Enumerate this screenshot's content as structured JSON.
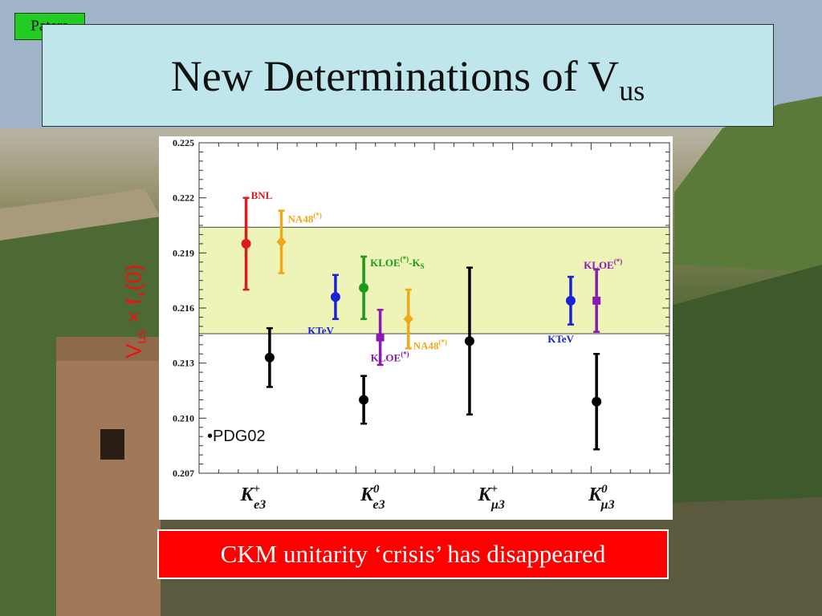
{
  "slide": {
    "author": "Patera",
    "title": "New Determinations of V",
    "title_subscript": "us",
    "footer": "CKM unitarity ‘crisis’ has disappeared"
  },
  "colors": {
    "red": "#e01a1a",
    "orange": "#f0a818",
    "green": "#1a9a1a",
    "blue": "#1a22d8",
    "purple": "#8a1ab0",
    "black": "#000000",
    "band": "#eef3b8",
    "footer_bg": "#ff0000",
    "title_bg": "#bfe6ea",
    "author_bg": "#22cc22"
  },
  "chart_data": {
    "type": "scatter",
    "ylabel_main": "V",
    "ylabel_sub": "us",
    "ylabel_mid": " × f",
    "ylabel_sub2": "+",
    "ylabel_end": "(0)",
    "ylim": [
      0.207,
      0.225
    ],
    "yticks": [
      "0.207",
      "0.210",
      "0.213",
      "0.216",
      "0.219",
      "0.222",
      "0.225"
    ],
    "xlim": [
      0,
      10
    ],
    "unitarity_band": [
      0.2146,
      0.2204
    ],
    "categories": [
      {
        "main": "K",
        "sup": "+",
        "sub": "e3",
        "x": 1.05
      },
      {
        "main": "K",
        "sup": "0",
        "sub": "e3",
        "x": 3.6
      },
      {
        "main": "K",
        "sup": "+",
        "sub": "μ3",
        "x": 6.1
      },
      {
        "main": "K",
        "sup": "0",
        "sub": "μ3",
        "x": 8.45
      }
    ],
    "points": [
      {
        "label": "BNL",
        "sup": "",
        "sub2": "",
        "x": 1.0,
        "y": 0.2195,
        "err": 0.0025,
        "color": "red",
        "marker": "circle"
      },
      {
        "label": "NA48",
        "sup": "(*)",
        "sub2": "",
        "x": 1.75,
        "y": 0.2196,
        "err": 0.0017,
        "color": "orange",
        "marker": "diamond"
      },
      {
        "label": "PDG02",
        "sup": "",
        "sub2": "",
        "x": 1.5,
        "y": 0.2133,
        "err": 0.0016,
        "color": "black",
        "marker": "circle"
      },
      {
        "label": "KTeV",
        "sup": "",
        "sub2": "",
        "x": 2.9,
        "y": 0.2166,
        "err": 0.0012,
        "color": "blue",
        "marker": "circle"
      },
      {
        "label": "KLOE",
        "sup": "(*)",
        "sub2": "-K",
        "sub3": "S",
        "x": 3.5,
        "y": 0.2171,
        "err": 0.0017,
        "color": "green",
        "marker": "circle"
      },
      {
        "label": "KLOE",
        "sup": "(*)",
        "sub2": "",
        "x": 3.85,
        "y": 0.2144,
        "err": 0.0015,
        "color": "purple",
        "marker": "square"
      },
      {
        "label": "NA48",
        "sup": "(*)",
        "sub2": "",
        "x": 4.45,
        "y": 0.2154,
        "err": 0.0016,
        "color": "orange",
        "marker": "diamond"
      },
      {
        "label": "PDG02",
        "sup": "",
        "sub2": "",
        "x": 3.5,
        "y": 0.211,
        "err": 0.0013,
        "color": "black",
        "marker": "circle"
      },
      {
        "label": "PDG02",
        "sup": "",
        "sub2": "",
        "x": 5.75,
        "y": 0.2142,
        "err": 0.004,
        "color": "black",
        "marker": "circle"
      },
      {
        "label": "KTeV",
        "sup": "",
        "sub2": "",
        "x": 7.9,
        "y": 0.2164,
        "err": 0.0013,
        "color": "blue",
        "marker": "circle"
      },
      {
        "label": "KLOE",
        "sup": "(*)",
        "sub2": "",
        "x": 8.45,
        "y": 0.2164,
        "err": 0.0017,
        "color": "purple",
        "marker": "square"
      },
      {
        "label": "PDG02",
        "sup": "",
        "sub2": "",
        "x": 8.45,
        "y": 0.2109,
        "err": 0.0026,
        "color": "black",
        "marker": "circle"
      }
    ],
    "legend_text": "•PDG02"
  }
}
